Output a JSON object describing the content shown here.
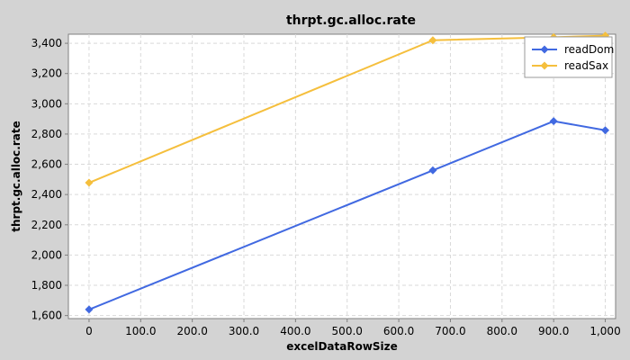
{
  "chart_data": {
    "type": "line",
    "title": "thrpt.gc.alloc.rate",
    "xlabel": "excelDataRowSize",
    "ylabel": "thrpt.gc.alloc.rate",
    "xlim": [
      -40,
      1020
    ],
    "ylim": [
      1580,
      3460
    ],
    "x_ticks": [
      0,
      100,
      200,
      300,
      400,
      500,
      600,
      700,
      800,
      900,
      1000
    ],
    "x_tick_labels": [
      "0",
      "100.0",
      "200.0",
      "300.0",
      "400.0",
      "500.0",
      "600.0",
      "700.0",
      "800.0",
      "900.0",
      "1,000"
    ],
    "y_ticks": [
      1600,
      1800,
      2000,
      2200,
      2400,
      2600,
      2800,
      3000,
      3200,
      3400
    ],
    "y_tick_labels": [
      "1,600",
      "1,800",
      "2,000",
      "2,200",
      "2,400",
      "2,600",
      "2,800",
      "3,000",
      "3,200",
      "3,400"
    ],
    "grid": true,
    "legend_position": "top-right",
    "series": [
      {
        "name": "readDom",
        "color": "#4169e1",
        "x": [
          0,
          666,
          900,
          1000
        ],
        "y": [
          1640,
          2560,
          2885,
          2825
        ]
      },
      {
        "name": "readSax",
        "color": "#f5bf3d",
        "x": [
          0,
          666,
          900,
          1000
        ],
        "y": [
          2478,
          3420,
          3440,
          3450
        ]
      }
    ]
  }
}
